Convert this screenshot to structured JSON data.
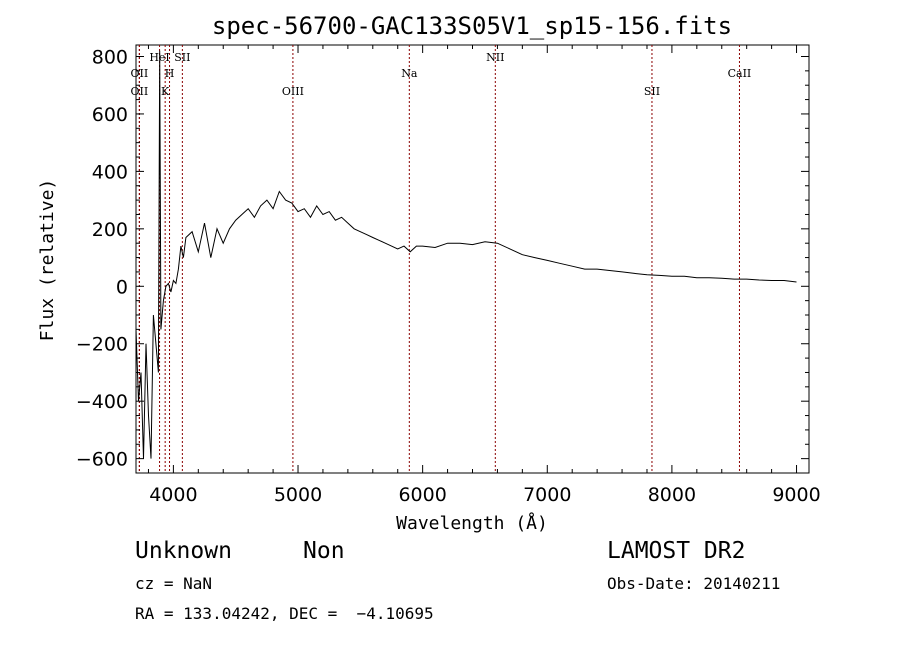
{
  "chart_data": {
    "type": "line",
    "title": "spec-56700-GAC133S05V1_sp15-156.fits",
    "xlabel": "Wavelength (Å)",
    "ylabel": "Flux (relative)",
    "xlim": [
      3700,
      9100
    ],
    "ylim": [
      -650,
      840
    ],
    "xticks": [
      4000,
      5000,
      6000,
      7000,
      8000,
      9000
    ],
    "xtick_labels": [
      "4000",
      "5000",
      "6000",
      "7000",
      "8000",
      "9000"
    ],
    "yticks": [
      -600,
      -400,
      -200,
      0,
      200,
      400,
      600,
      800
    ],
    "ytick_labels": [
      "−600",
      "−400",
      "−200",
      "0",
      "200",
      "400",
      "600",
      "800"
    ],
    "grid": false,
    "line_color": "#000000",
    "marker_color": "#8b0000",
    "series": [
      {
        "x": [
          3700,
          3720,
          3740,
          3760,
          3780,
          3800,
          3820,
          3840,
          3860,
          3880,
          3890,
          3900,
          3920,
          3940,
          3960,
          3980,
          4000,
          4020,
          4040,
          4060,
          4080,
          4100,
          4150,
          4200,
          4250,
          4300,
          4350,
          4400,
          4450,
          4500,
          4550,
          4600,
          4650,
          4700,
          4750,
          4800,
          4850,
          4900,
          4950,
          5000,
          5050,
          5100,
          5150,
          5200,
          5250,
          5300,
          5350,
          5400,
          5450,
          5500,
          5550,
          5600,
          5650,
          5700,
          5750,
          5800,
          5850,
          5900,
          5950,
          6000,
          6100,
          6200,
          6300,
          6400,
          6500,
          6600,
          6700,
          6800,
          6900,
          7000,
          7100,
          7200,
          7300,
          7400,
          7500,
          7600,
          7700,
          7800,
          7900,
          8000,
          8100,
          8200,
          8300,
          8400,
          8500,
          8600,
          8700,
          8800,
          8900,
          9000
        ],
        "y": [
          -150,
          -400,
          -300,
          -600,
          -200,
          -450,
          -600,
          -100,
          -200,
          -300,
          820,
          -150,
          -50,
          0,
          10,
          -20,
          20,
          10,
          60,
          140,
          100,
          170,
          190,
          120,
          220,
          100,
          200,
          150,
          200,
          230,
          250,
          270,
          240,
          280,
          300,
          270,
          330,
          300,
          290,
          260,
          270,
          240,
          280,
          250,
          260,
          230,
          240,
          220,
          200,
          190,
          180,
          170,
          160,
          150,
          140,
          130,
          140,
          120,
          140,
          140,
          135,
          150,
          150,
          145,
          155,
          150,
          130,
          110,
          100,
          90,
          80,
          70,
          60,
          60,
          55,
          50,
          45,
          40,
          38,
          35,
          35,
          30,
          30,
          28,
          25,
          25,
          22,
          20,
          20,
          15
        ]
      }
    ],
    "lines": [
      {
        "label": "OII",
        "x": 3727,
        "row": 2
      },
      {
        "label": "OII",
        "x": 3727,
        "row": 3
      },
      {
        "label": "HeI",
        "x": 3889,
        "row": 1
      },
      {
        "label": "H",
        "x": 3969,
        "row": 2
      },
      {
        "label": "K",
        "x": 3934,
        "row": 3
      },
      {
        "label": "SII",
        "x": 4072,
        "row": 1
      },
      {
        "label": "OIII",
        "x": 4959,
        "row": 3
      },
      {
        "label": "Na",
        "x": 5893,
        "row": 2
      },
      {
        "label": "NII",
        "x": 6583,
        "row": 1
      },
      {
        "label": "SII",
        "x": 7840,
        "row": 3
      },
      {
        "label": "CaII",
        "x": 8542,
        "row": 2
      }
    ]
  },
  "footer": {
    "object_type": "Unknown",
    "object_subclass": "Non",
    "survey": "LAMOST DR2",
    "redshift": "cz = NaN",
    "obs_date": "Obs-Date: 20140211",
    "coords": "RA = 133.04242, DEC =  −4.10695"
  }
}
